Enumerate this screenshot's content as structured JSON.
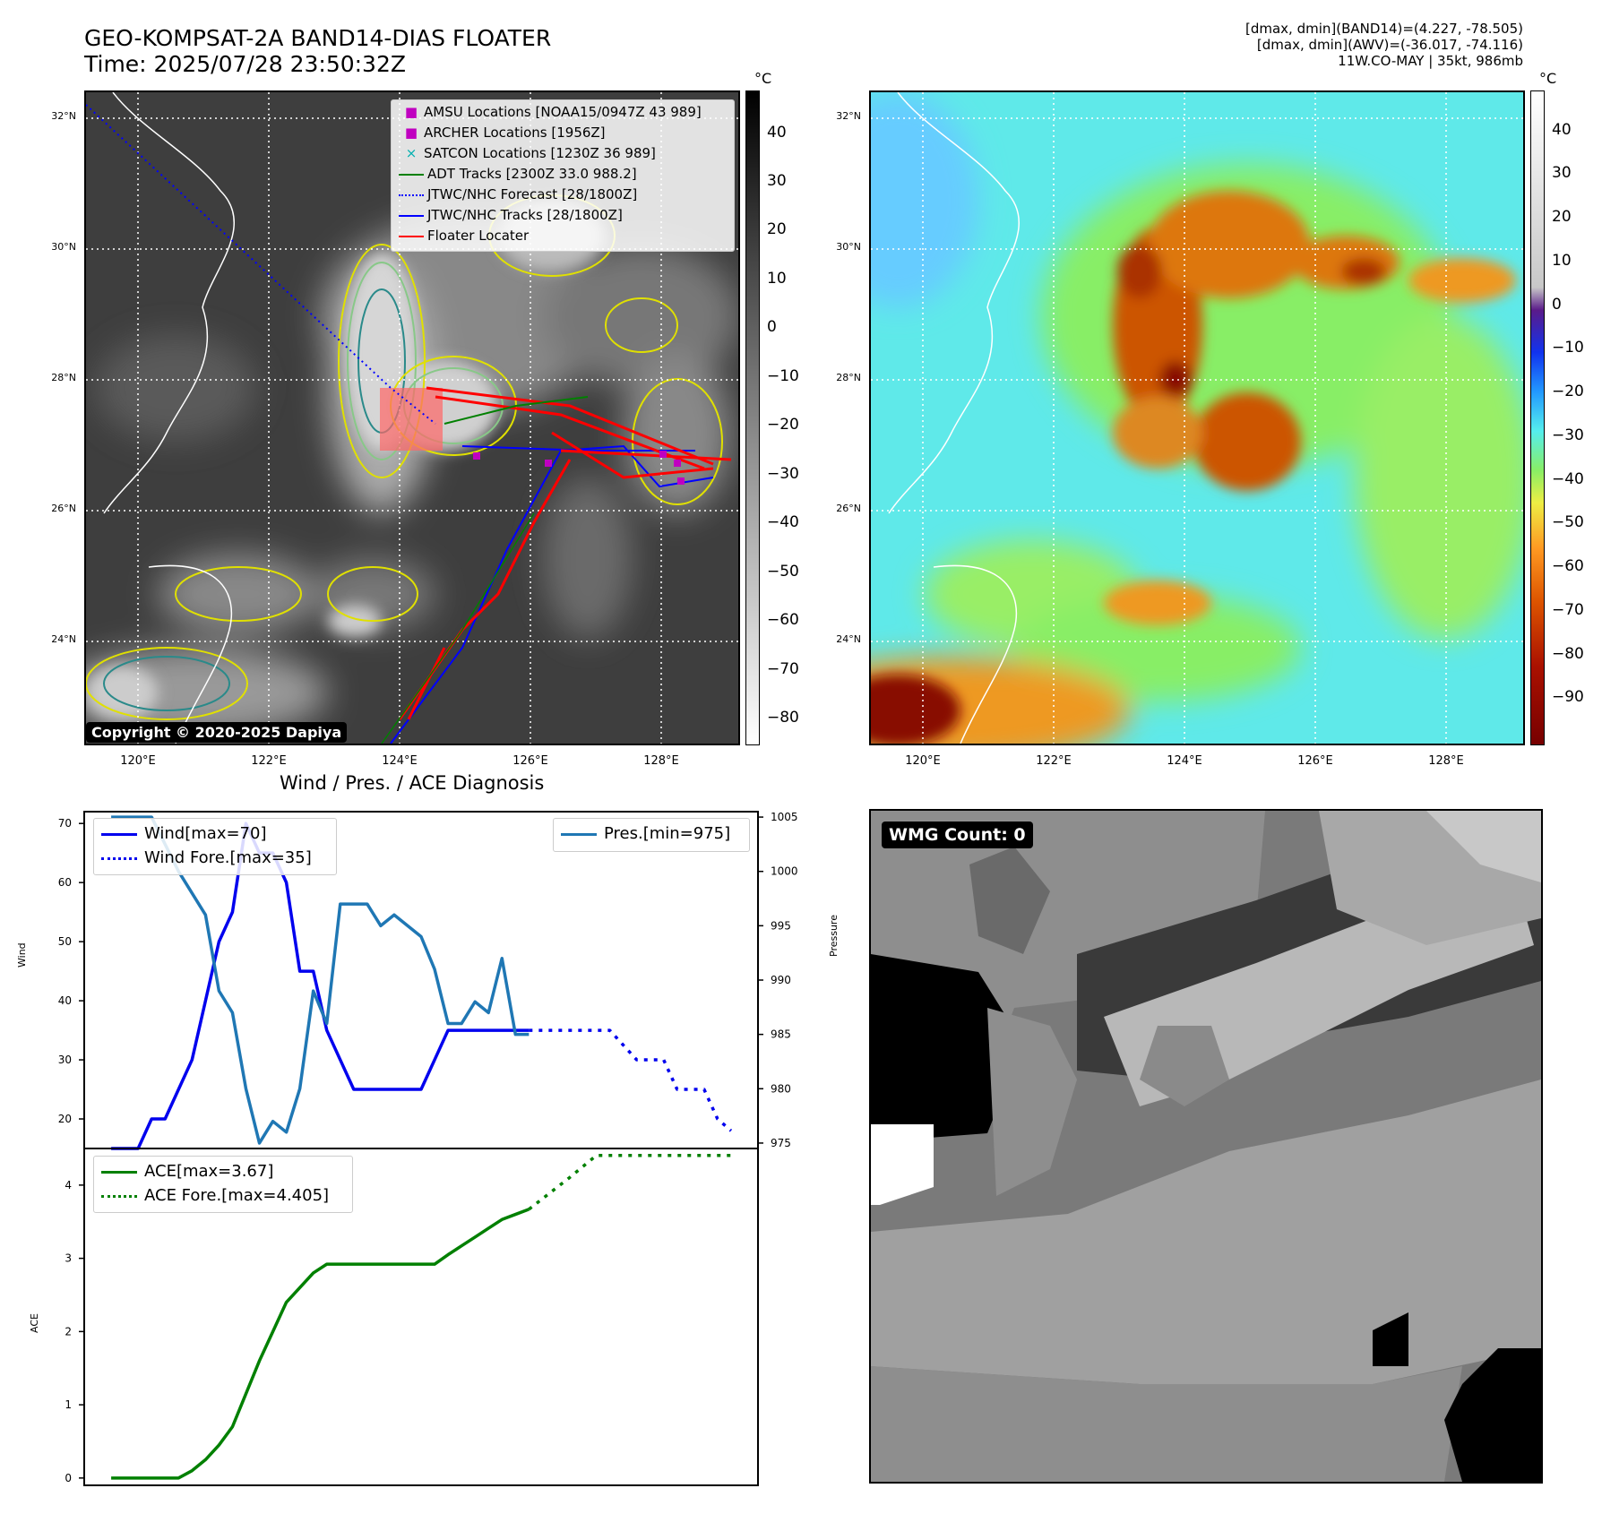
{
  "header": {
    "title_line1": "GEO-KOMPSAT-2A BAND14-DIAS FLOATER",
    "title_line2": "Time: 2025/07/28 23:50:32Z",
    "info_line1": "[dmax, dmin](BAND14)=(4.227, -78.505)",
    "info_line2": "[dmax, dmin](AWV)=(-36.017, -74.116)",
    "info_line3": "11W.CO-MAY | 35kt, 986mb"
  },
  "map": {
    "lon_ticks": [
      "120°E",
      "122°E",
      "124°E",
      "126°E",
      "128°E"
    ],
    "lat_ticks": [
      "32°N",
      "30°N",
      "28°N",
      "26°N",
      "24°N"
    ],
    "copyright": "Copyright © 2020-2025 Dapiya",
    "legend": [
      {
        "label": "AMSU Locations [NOAA15/0947Z 43 989]",
        "color": "#c000c0"
      },
      {
        "label": "ARCHER Locations [1956Z]",
        "color": "#c000c0"
      },
      {
        "label": "SATCON Locations [1230Z 36 989]",
        "color": "#00b0b0"
      },
      {
        "label": "ADT Tracks [2300Z 33.0 988.2]",
        "color": "#008000"
      },
      {
        "label": "JTWC/NHC Forecast [28/1800Z]",
        "color": "#0000ff"
      },
      {
        "label": "JTWC/NHC Tracks [28/1800Z]",
        "color": "#0000ff"
      },
      {
        "label": "Floater Locater",
        "color": "#ff0000"
      }
    ]
  },
  "colorbar1": {
    "unit": "°C",
    "ticks": [
      "40",
      "30",
      "20",
      "10",
      "0",
      "−10",
      "−20",
      "−30",
      "−40",
      "−50",
      "−60",
      "−70",
      "−80"
    ]
  },
  "colorbar2": {
    "unit": "°C",
    "ticks": [
      "40",
      "30",
      "20",
      "10",
      "0",
      "−10",
      "−20",
      "−30",
      "−40",
      "−50",
      "−60",
      "−70",
      "−80",
      "−90"
    ]
  },
  "wmg": {
    "label": "WMG Count: 0"
  },
  "chart_data": [
    {
      "type": "line",
      "title": "Wind / Pres. / ACE Diagnosis",
      "ylabel": "Wind",
      "y2label": "Pressure",
      "ylim": [
        15,
        72
      ],
      "y2lim": [
        974.5,
        1005.5
      ],
      "yticks": [
        20,
        30,
        40,
        50,
        60,
        70
      ],
      "y2ticks": [
        975,
        980,
        985,
        990,
        995,
        1000,
        1005
      ],
      "series": [
        {
          "name": "Wind[max=70]",
          "style": "solid",
          "color": "#0000ee",
          "x": [
            0,
            1,
            2,
            3,
            4,
            5,
            6,
            7,
            8,
            9,
            10,
            11,
            12,
            13,
            14,
            15,
            16,
            17,
            18,
            19,
            20,
            21,
            22,
            23,
            24,
            25,
            26,
            27,
            28,
            29,
            30,
            31
          ],
          "values": [
            15,
            15,
            15,
            20,
            20,
            25,
            30,
            40,
            50,
            55,
            70,
            65,
            65,
            60,
            45,
            45,
            35,
            30,
            25,
            25,
            25,
            25,
            25,
            25,
            30,
            35,
            35,
            35,
            35,
            35,
            35,
            35
          ]
        },
        {
          "name": "Wind Fore.[max=35]",
          "style": "dotted",
          "color": "#0000ee",
          "x": [
            31,
            36,
            37,
            39,
            41,
            42,
            44,
            45,
            46
          ],
          "values": [
            35,
            35,
            35,
            30,
            30,
            25,
            25,
            20,
            18
          ]
        },
        {
          "name": "Pres.[min=975]",
          "style": "solid",
          "color": "#1f77b4",
          "x": [
            0,
            3,
            5,
            7,
            8,
            9,
            10,
            11,
            12,
            13,
            14,
            15,
            16,
            17,
            18,
            19,
            20,
            21,
            22,
            23,
            24,
            25,
            26,
            27,
            28,
            29,
            30,
            31
          ],
          "values": [
            1005,
            1005,
            1000,
            996,
            989,
            987,
            980,
            975,
            977,
            976,
            980,
            989,
            986,
            997,
            997,
            997,
            995,
            996,
            995,
            994,
            991,
            986,
            986,
            988,
            987,
            992,
            985,
            985
          ]
        }
      ]
    },
    {
      "type": "line",
      "ylabel": "ACE",
      "ylim": [
        -0.1,
        4.5
      ],
      "yticks": [
        0,
        1,
        2,
        3,
        4
      ],
      "series": [
        {
          "name": "ACE[max=3.67]",
          "style": "solid",
          "color": "#008000",
          "x": [
            0,
            1,
            3,
            5,
            6,
            7,
            8,
            9,
            10,
            11,
            12,
            13,
            14,
            15,
            16,
            17,
            20,
            21,
            22,
            23,
            24,
            25,
            26,
            27,
            28,
            29,
            30,
            31
          ],
          "values": [
            0,
            0,
            0,
            0,
            0.1,
            0.25,
            0.45,
            0.7,
            1.15,
            1.6,
            2.0,
            2.4,
            2.6,
            2.8,
            2.92,
            2.92,
            2.92,
            2.92,
            2.92,
            2.92,
            2.92,
            3.05,
            3.17,
            3.29,
            3.41,
            3.53,
            3.6,
            3.67
          ]
        },
        {
          "name": "ACE Fore.[max=4.405]",
          "style": "dotted",
          "color": "#008000",
          "x": [
            31,
            34,
            36,
            40,
            44,
            46
          ],
          "values": [
            3.67,
            4.1,
            4.405,
            4.405,
            4.405,
            4.405
          ]
        }
      ]
    }
  ]
}
